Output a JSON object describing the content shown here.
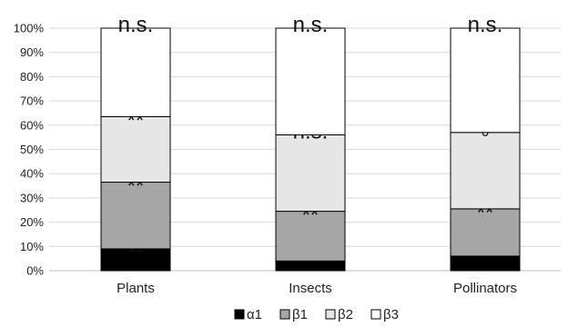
{
  "chart_data": {
    "type": "bar",
    "stacked": true,
    "categories": [
      "Plants",
      "Insects",
      "Pollinators"
    ],
    "series": [
      {
        "name": "α1",
        "color": "#000000",
        "values": [
          9,
          4,
          6
        ]
      },
      {
        "name": "β1",
        "color": "#a6a6a6",
        "values": [
          27.5,
          20.5,
          19.5
        ]
      },
      {
        "name": "β2",
        "color": "#e6e6e6",
        "values": [
          27,
          31.5,
          31.5
        ]
      },
      {
        "name": "β3",
        "color": "#ffffff",
        "values": [
          36.5,
          44,
          43
        ]
      }
    ],
    "yticks": [
      "0%",
      "10%",
      "20%",
      "30%",
      "40%",
      "50%",
      "60%",
      "70%",
      "80%",
      "90%",
      "100%"
    ],
    "ylim": [
      0,
      100
    ],
    "grid": true,
    "legend_position": "bottom",
    "annotations": [
      [
        "**",
        "**",
        "**",
        "n.s."
      ],
      [
        "",
        "**",
        "n.s.",
        "n.s."
      ],
      [
        "",
        "**",
        "°",
        "n.s."
      ]
    ],
    "title": "",
    "xlabel": "",
    "ylabel": ""
  }
}
